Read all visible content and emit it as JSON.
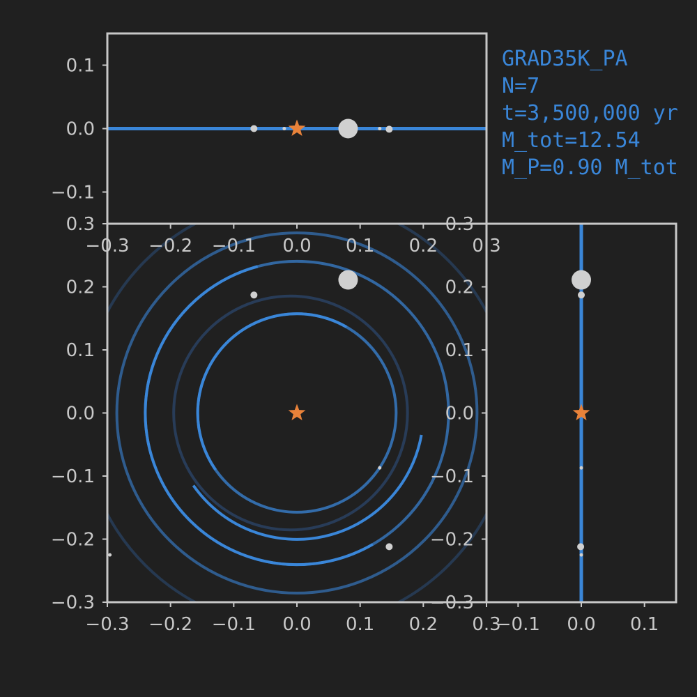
{
  "info": {
    "name": "GRAD35K_PA",
    "n": "N=7",
    "time": "t=3,500,000 yr",
    "mass_total": "M_tot=12.54",
    "mass_planets": "M_P=0.90 M_tot"
  },
  "colors": {
    "background": "#202020",
    "frame": "#c8c8c8",
    "orbit": "#3a86d8",
    "orbit_faded": "#2a4466",
    "star": "#e8823a",
    "body": "#d0d0d0"
  },
  "chart_data": [
    {
      "id": "xy",
      "type": "scatter",
      "description_axes": "x vs y",
      "xlim": [
        -0.3,
        0.3
      ],
      "ylim": [
        -0.3,
        0.3
      ],
      "x_ticks": [
        -0.3,
        -0.2,
        -0.1,
        0.0,
        0.1,
        0.2,
        0.3
      ],
      "y_ticks": [
        -0.3,
        -0.2,
        -0.1,
        0.0,
        0.1,
        0.2,
        0.3
      ],
      "tick_labels": [
        "−0.3",
        "−0.2",
        "−0.1",
        "0.0",
        "0.1",
        "0.2",
        "0.3"
      ],
      "star": {
        "x": 0.0,
        "y": 0.0
      },
      "bodies": [
        {
          "x": 0.081,
          "y": 0.211,
          "size": "large"
        },
        {
          "x": -0.068,
          "y": 0.187,
          "size": "small"
        },
        {
          "x": 0.131,
          "y": -0.087,
          "size": "tiny"
        },
        {
          "x": 0.146,
          "y": -0.212,
          "size": "small"
        },
        {
          "x": -0.296,
          "y": -0.225,
          "size": "tiny"
        }
      ],
      "orbits": [
        {
          "cx": 0.0,
          "cy": 0.0,
          "r": 0.157,
          "arc": [
            0.0,
            1.0
          ]
        },
        {
          "cx": -0.01,
          "cy": 0.0,
          "r": 0.185,
          "arc": [
            0.0,
            1.0
          ]
        },
        {
          "cx": 0.0,
          "cy": 0.0,
          "r": 0.24,
          "arc": [
            0.0,
            1.0
          ]
        },
        {
          "cx": 0.0,
          "cy": 0.0,
          "r": 0.285,
          "arc": [
            0.0,
            1.0
          ]
        },
        {
          "cx": 0.0,
          "cy": 0.0,
          "r": 0.34,
          "arc": [
            0.0,
            1.0
          ]
        }
      ]
    },
    {
      "id": "xz",
      "type": "scatter",
      "description_axes": "x vs z",
      "xlim": [
        -0.3,
        0.3
      ],
      "ylim": [
        -0.15,
        0.15
      ],
      "x_ticks": [
        -0.3,
        -0.2,
        -0.1,
        0.0,
        0.1,
        0.2,
        0.3
      ],
      "y_ticks": [
        -0.1,
        0.0,
        0.1
      ],
      "x_tick_labels": [
        "−0.3",
        "−0.2",
        "−0.1",
        "0.0",
        "0.1",
        "0.2",
        "0.3"
      ],
      "y_tick_labels": [
        "−0.1",
        "0.0",
        "0.1"
      ],
      "star": {
        "x": 0.0,
        "z": 0.0
      },
      "bodies": [
        {
          "x": 0.081,
          "z": 0.0,
          "size": "large"
        },
        {
          "x": -0.068,
          "z": 0.0,
          "size": "small"
        },
        {
          "x": -0.02,
          "z": 0.0,
          "size": "tiny"
        },
        {
          "x": 0.131,
          "z": 0.0,
          "size": "tiny"
        },
        {
          "x": 0.146,
          "z": -0.001,
          "size": "small"
        }
      ]
    },
    {
      "id": "zy",
      "type": "scatter",
      "description_axes": "z vs y",
      "xlim": [
        -0.15,
        0.15
      ],
      "ylim": [
        -0.3,
        0.3
      ],
      "x_ticks": [
        -0.1,
        0.0,
        0.1
      ],
      "y_ticks": [
        -0.3,
        -0.2,
        -0.1,
        0.0,
        0.1,
        0.2,
        0.3
      ],
      "x_tick_labels": [
        "−0.1",
        "0.0",
        "0.1"
      ],
      "y_tick_labels": [
        "−0.3",
        "−0.2",
        "−0.1",
        "0.0",
        "0.1",
        "0.2",
        "0.3"
      ],
      "star": {
        "z": 0.0,
        "y": 0.0
      },
      "bodies": [
        {
          "z": 0.0,
          "y": 0.211,
          "size": "large"
        },
        {
          "z": 0.0,
          "y": 0.187,
          "size": "small"
        },
        {
          "z": 0.0,
          "y": -0.087,
          "size": "tiny"
        },
        {
          "z": -0.001,
          "y": -0.212,
          "size": "small"
        },
        {
          "z": 0.0,
          "y": -0.225,
          "size": "tiny"
        }
      ]
    }
  ]
}
